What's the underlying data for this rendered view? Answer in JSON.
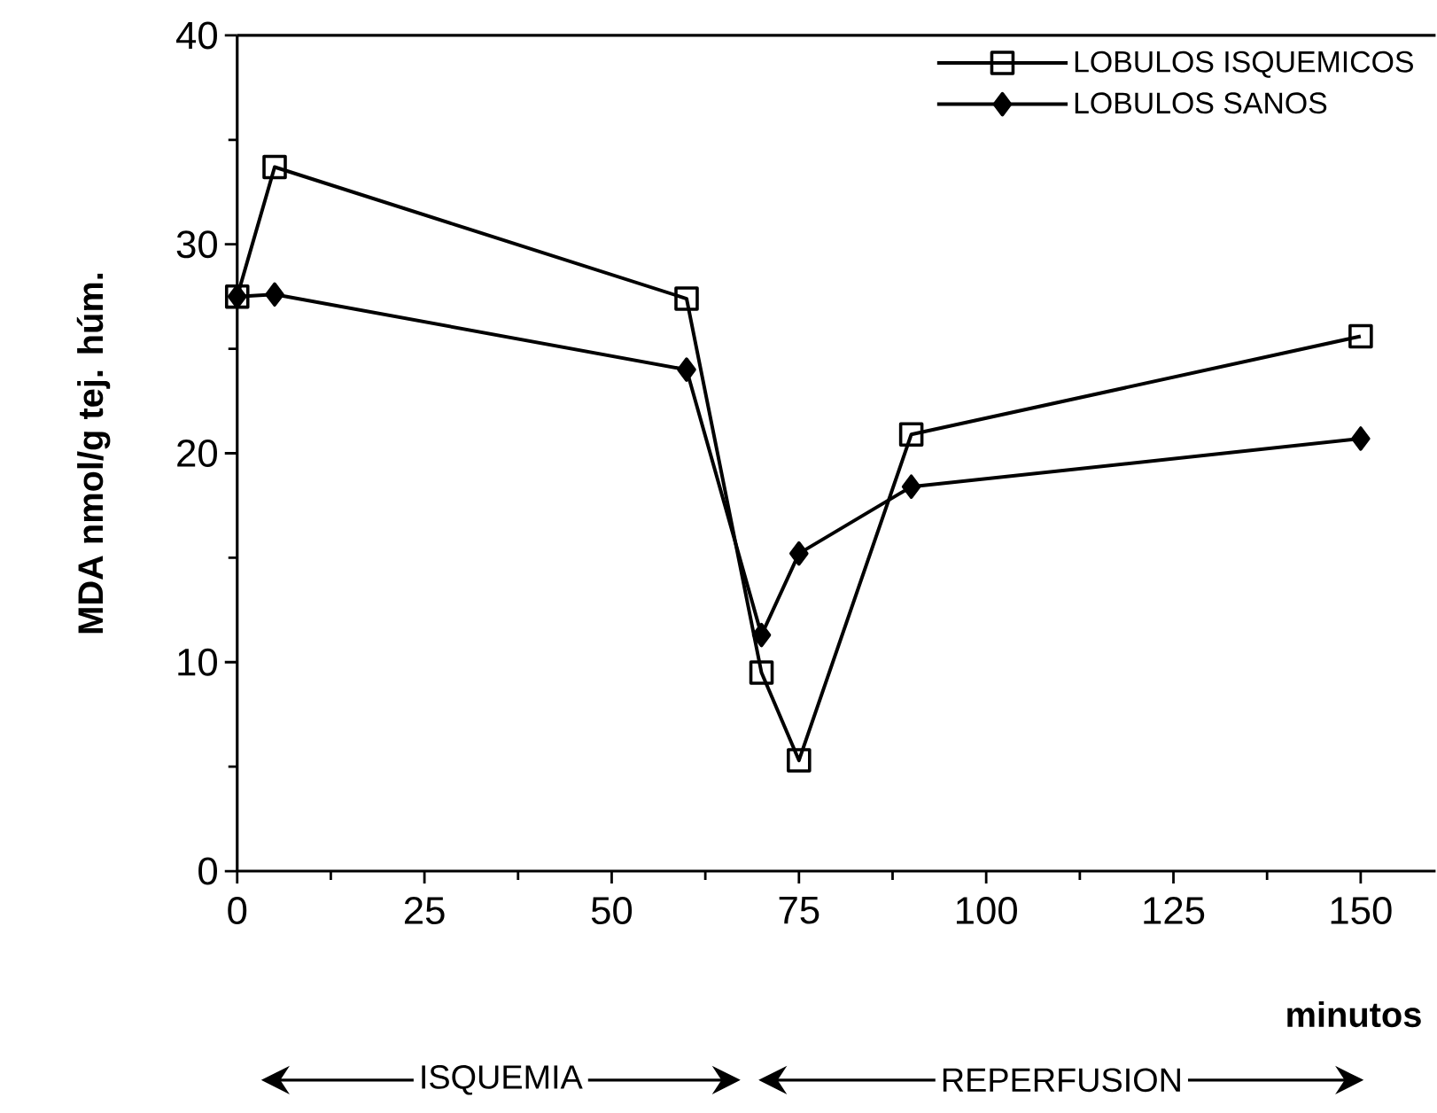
{
  "chart_data": {
    "type": "line",
    "xlabel": "minutos",
    "ylabel": "MDA  nmol/g  tej.  húm.",
    "x": [
      0,
      5,
      60,
      70,
      75,
      90,
      150
    ],
    "series": [
      {
        "name": "LOBULOS ISQUEMICOS",
        "color": "#000000",
        "marker": "square",
        "values": [
          27.5,
          33.7,
          27.4,
          9.5,
          5.3,
          20.9,
          25.6
        ]
      },
      {
        "name": "LOBULOS SANOS",
        "color": "#000000",
        "marker": "diamond",
        "values": [
          27.5,
          27.6,
          24.0,
          11.3,
          15.2,
          18.4,
          20.7
        ]
      }
    ],
    "xlim": [
      0,
      160
    ],
    "xticks": [
      0,
      25,
      50,
      75,
      100,
      125,
      150
    ],
    "ylim": [
      0,
      40
    ],
    "yticks": [
      0,
      10,
      20,
      30,
      40
    ],
    "legend": "top right",
    "grid": false,
    "line_style": "solid",
    "annotations": [
      "ISQUEMIA",
      "REPERFUSION"
    ]
  }
}
